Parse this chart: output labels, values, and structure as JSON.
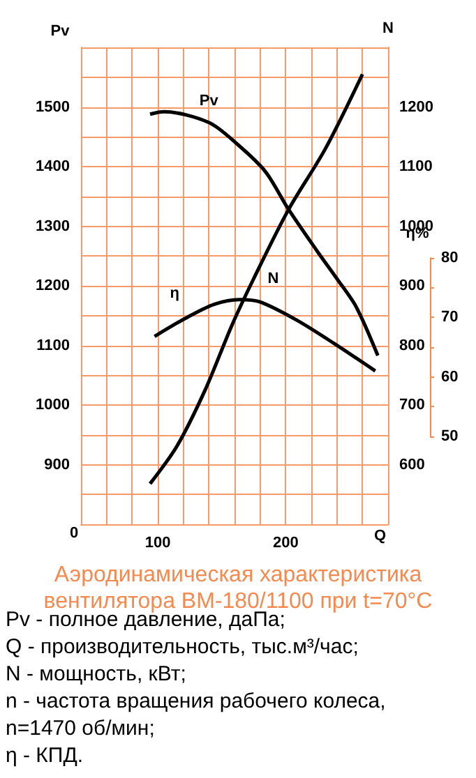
{
  "chart_data": {
    "type": "line",
    "title": "Аэродинамическая характеристика вентилятора ВМ-180/1100 при t=70°C",
    "xlabel": "Q",
    "ylabel": "Pv",
    "y2label": "N",
    "y3label": "η%",
    "xlim": [
      40,
      280
    ],
    "xticks": [
      {
        "value": 40,
        "label": null
      },
      {
        "value": 60,
        "label": null
      },
      {
        "value": 80,
        "label": null
      },
      100,
      {
        "value": 120,
        "label": null
      },
      {
        "value": 140,
        "label": null
      },
      {
        "value": 160,
        "label": null
      },
      {
        "value": 180,
        "label": null
      },
      200,
      {
        "value": 220,
        "label": null
      },
      {
        "value": 240,
        "label": null
      },
      {
        "value": 260,
        "label": null
      },
      {
        "value": 280,
        "label": null
      }
    ],
    "ylim": [
      800,
      1600
    ],
    "yticks": [
      {
        "value": 800,
        "label": null
      },
      {
        "value": 850,
        "label": null
      },
      900,
      {
        "value": 950,
        "label": null
      },
      1000,
      {
        "value": 1050,
        "label": null
      },
      1100,
      {
        "value": 1150,
        "label": null
      },
      1200,
      {
        "value": 1250,
        "label": null
      },
      1300,
      {
        "value": 1350,
        "label": null
      },
      1400,
      {
        "value": 1450,
        "label": null
      },
      1500,
      {
        "value": 1550,
        "label": null
      },
      {
        "value": 1600,
        "label": null
      }
    ],
    "y2lim": [
      500,
      1300
    ],
    "y2ticks": [
      600,
      700,
      800,
      900,
      1000,
      1100,
      1200
    ],
    "y3lim": [
      50,
      80
    ],
    "y3ticks": [
      50,
      {
        "value": 55,
        "label": null
      },
      60,
      {
        "value": 65,
        "label": null
      },
      70,
      {
        "value": 75,
        "label": null
      },
      80
    ],
    "grid": true,
    "legend": false,
    "marker": "none",
    "line_style": "solid",
    "series": [
      {
        "name": "Pv",
        "color": "#000000",
        "x": [
          94,
          105,
          140,
          162,
          184,
          202,
          224,
          240,
          255,
          272
        ],
        "values": [
          1488,
          1492,
          1474,
          1438,
          1392,
          1329,
          1260,
          1212,
          1165,
          1083
        ]
      },
      {
        "name": "N",
        "color": "#000000",
        "axis": "y2",
        "x": [
          94,
          115,
          137,
          158,
          175,
          202,
          231,
          260
        ],
        "values": [
          568,
          631,
          725,
          834,
          912,
          1027,
          1130,
          1255
        ]
      },
      {
        "name": "η",
        "color": "#000000",
        "axis": "y3",
        "x": [
          97.5,
          122,
          144,
          164,
          180,
          209,
          238,
          270
        ],
        "values": [
          66.8,
          69.9,
          72.2,
          73.0,
          72.6,
          69.5,
          65.6,
          61.0
        ]
      }
    ],
    "annotations": [
      "0",
      "Pv - полное давление, даПа;",
      "Q - производительность, тыс.м³/час;",
      "N - мощность, кВт;",
      "n - частота вращения рабочего колеса,",
      "n=1470 об/мин;",
      "η - КПД."
    ]
  }
}
